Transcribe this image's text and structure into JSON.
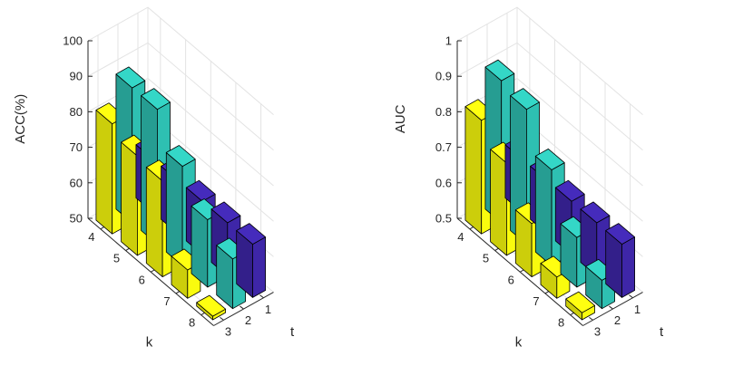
{
  "chart_data": [
    {
      "type": "bar3d",
      "zlabel": "ACC(%)",
      "xlabel": "t",
      "ylabel": "k",
      "zlim": [
        50,
        100
      ],
      "zticks": [
        "50",
        "60",
        "70",
        "80",
        "90",
        "100"
      ],
      "t_ticks": [
        "1",
        "2",
        "3"
      ],
      "k_ticks": [
        "4",
        "5",
        "6",
        "7",
        "8"
      ],
      "grid": true,
      "series": [
        {
          "name": "t = 1",
          "t": 1,
          "color": "#3e26a8",
          "values": [
            65,
            65,
            65,
            65,
            65
          ]
        },
        {
          "name": "t = 2",
          "t": 2,
          "color": "#2ec0b2",
          "values": [
            88,
            88,
            78,
            69,
            64
          ]
        },
        {
          "name": "t = 3",
          "t": 3,
          "color": "#f9fb0e",
          "values": [
            81,
            78,
            77,
            58,
            51
          ]
        }
      ]
    },
    {
      "type": "bar3d",
      "zlabel": "AUC",
      "xlabel": "t",
      "ylabel": "k",
      "zlim": [
        0.5,
        1
      ],
      "zticks": [
        "0.5",
        "0.6",
        "0.7",
        "0.8",
        "0.9",
        "1"
      ],
      "t_ticks": [
        "1",
        "2",
        "3"
      ],
      "k_ticks": [
        "4",
        "5",
        "6",
        "7",
        "8"
      ],
      "grid": true,
      "series": [
        {
          "name": "t = 1",
          "t": 1,
          "color": "#3e26a8",
          "values": [
            0.65,
            0.65,
            0.65,
            0.65,
            0.65
          ]
        },
        {
          "name": "t = 2",
          "t": 2,
          "color": "#2ec0b2",
          "values": [
            0.9,
            0.88,
            0.77,
            0.64,
            0.58
          ]
        },
        {
          "name": "t = 3",
          "t": 3,
          "color": "#f9fb0e",
          "values": [
            0.82,
            0.76,
            0.65,
            0.56,
            0.52
          ]
        }
      ]
    }
  ]
}
